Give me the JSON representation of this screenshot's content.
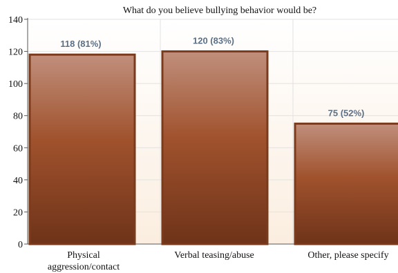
{
  "chart_data": {
    "type": "bar",
    "title": "What do you believe bullying behavior would be?",
    "xlabel": "",
    "ylabel": "",
    "ylim": [
      0,
      140
    ],
    "yticks": [
      0,
      20,
      40,
      60,
      80,
      100,
      120,
      140
    ],
    "grid": true,
    "categories": [
      [
        "Physical",
        "aggression/contact"
      ],
      [
        "Verbal teasing/abuse"
      ],
      [
        "Other, please specify"
      ]
    ],
    "values": [
      118,
      120,
      75
    ],
    "data_labels": [
      "118 (81%)",
      "120 (83%)",
      "75 (52%)"
    ]
  },
  "colors": {
    "bar_top": "#c08f7c",
    "bar_mid": "#a0522d",
    "bar_bottom": "#6e3319",
    "bar_border": "#7a3a1c",
    "plot_bg_top": "#ffffff",
    "plot_bg_bottom": "#fbeee0"
  }
}
